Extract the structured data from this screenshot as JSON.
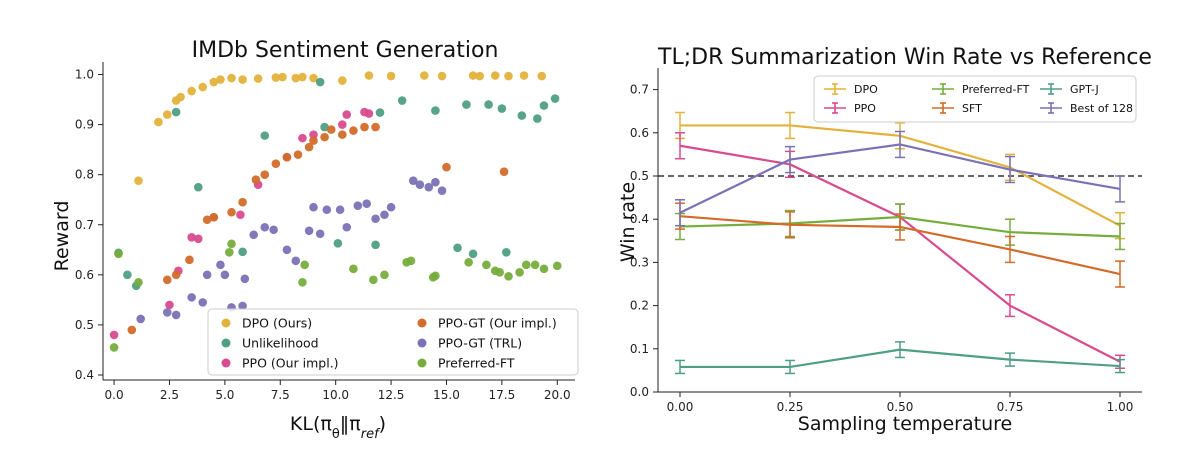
{
  "chart_data": [
    {
      "type": "scatter",
      "title": "IMDb Sentiment Generation",
      "xlabel": "KL(πθ‖πref)",
      "ylabel": "Reward",
      "xlim": [
        -0.5,
        20.8
      ],
      "ylim": [
        0.39,
        1.025
      ],
      "xticks": [
        "0.0",
        "2.5",
        "5.0",
        "7.5",
        "10.0",
        "12.5",
        "15.0",
        "17.5",
        "20.0"
      ],
      "xtick_values": [
        0,
        2.5,
        5,
        7.5,
        10,
        12.5,
        15,
        17.5,
        20
      ],
      "yticks": [
        "0.4",
        "0.5",
        "0.6",
        "0.7",
        "0.8",
        "0.9",
        "1.0"
      ],
      "ytick_values": [
        0.4,
        0.5,
        0.6,
        0.7,
        0.8,
        0.9,
        1.0
      ],
      "grid": false,
      "legend_position": "bottom-right",
      "series": [
        {
          "name": "DPO (Ours)",
          "color": "#e3b23c",
          "points": [
            [
              1.1,
              0.788
            ],
            [
              2.0,
              0.905
            ],
            [
              2.4,
              0.92
            ],
            [
              2.8,
              0.948
            ],
            [
              3.0,
              0.955
            ],
            [
              3.5,
              0.967
            ],
            [
              4.0,
              0.975
            ],
            [
              4.5,
              0.985
            ],
            [
              4.8,
              0.99
            ],
            [
              5.3,
              0.993
            ],
            [
              5.8,
              0.99
            ],
            [
              6.5,
              0.992
            ],
            [
              7.3,
              0.994
            ],
            [
              7.6,
              0.995
            ],
            [
              8.2,
              0.993
            ],
            [
              8.5,
              0.995
            ],
            [
              9.0,
              0.993
            ],
            [
              10.3,
              0.988
            ],
            [
              11.5,
              0.998
            ],
            [
              12.5,
              0.997
            ],
            [
              14.0,
              0.998
            ],
            [
              14.8,
              0.997
            ],
            [
              16.2,
              0.998
            ],
            [
              16.5,
              0.997
            ],
            [
              17.2,
              0.998
            ],
            [
              17.8,
              0.997
            ],
            [
              18.5,
              0.998
            ],
            [
              19.3,
              0.997
            ]
          ]
        },
        {
          "name": "Unlikelihood",
          "color": "#4f9e86",
          "points": [
            [
              0.2,
              0.644
            ],
            [
              0.6,
              0.6
            ],
            [
              1.0,
              0.578
            ],
            [
              2.8,
              0.925
            ],
            [
              3.8,
              0.775
            ],
            [
              5.8,
              0.646
            ],
            [
              6.8,
              0.878
            ],
            [
              9.3,
              0.985
            ],
            [
              9.5,
              0.895
            ],
            [
              10.1,
              0.663
            ],
            [
              11.8,
              0.66
            ],
            [
              12.0,
              0.924
            ],
            [
              13.0,
              0.948
            ],
            [
              14.5,
              0.928
            ],
            [
              15.5,
              0.654
            ],
            [
              15.9,
              0.94
            ],
            [
              16.2,
              0.642
            ],
            [
              16.9,
              0.94
            ],
            [
              17.5,
              0.932
            ],
            [
              17.7,
              0.645
            ],
            [
              18.4,
              0.918
            ],
            [
              19.1,
              0.912
            ],
            [
              19.4,
              0.938
            ],
            [
              19.9,
              0.952
            ]
          ]
        },
        {
          "name": "PPO (Our impl.)",
          "color": "#d94b8f",
          "points": [
            [
              0.0,
              0.48
            ],
            [
              2.5,
              0.54
            ],
            [
              2.9,
              0.608
            ],
            [
              3.5,
              0.675
            ],
            [
              3.8,
              0.672
            ],
            [
              4.5,
              0.715
            ],
            [
              5.7,
              0.72
            ],
            [
              6.5,
              0.78
            ],
            [
              7.8,
              0.835
            ],
            [
              8.5,
              0.873
            ],
            [
              9.0,
              0.88
            ],
            [
              10.3,
              0.9
            ],
            [
              10.5,
              0.92
            ],
            [
              11.3,
              0.925
            ],
            [
              11.5,
              0.922
            ]
          ]
        },
        {
          "name": "PPO-GT (Our impl.)",
          "color": "#d36b2a",
          "points": [
            [
              0.8,
              0.49
            ],
            [
              2.4,
              0.59
            ],
            [
              2.8,
              0.6
            ],
            [
              3.4,
              0.63
            ],
            [
              4.2,
              0.71
            ],
            [
              4.5,
              0.715
            ],
            [
              5.3,
              0.725
            ],
            [
              5.8,
              0.745
            ],
            [
              6.4,
              0.79
            ],
            [
              6.8,
              0.8
            ],
            [
              7.3,
              0.822
            ],
            [
              7.8,
              0.835
            ],
            [
              8.3,
              0.84
            ],
            [
              8.8,
              0.855
            ],
            [
              9.0,
              0.868
            ],
            [
              9.5,
              0.875
            ],
            [
              9.8,
              0.89
            ],
            [
              10.3,
              0.88
            ],
            [
              10.8,
              0.888
            ],
            [
              11.3,
              0.895
            ],
            [
              11.8,
              0.895
            ],
            [
              15.0,
              0.815
            ],
            [
              17.6,
              0.806
            ]
          ]
        },
        {
          "name": "PPO-GT (TRL)",
          "color": "#7b72b6",
          "points": [
            [
              1.2,
              0.512
            ],
            [
              2.4,
              0.525
            ],
            [
              2.8,
              0.52
            ],
            [
              3.5,
              0.555
            ],
            [
              4.0,
              0.545
            ],
            [
              4.2,
              0.6
            ],
            [
              4.8,
              0.62
            ],
            [
              5.0,
              0.6
            ],
            [
              5.3,
              0.535
            ],
            [
              5.8,
              0.538
            ],
            [
              5.9,
              0.592
            ],
            [
              6.3,
              0.68
            ],
            [
              6.8,
              0.695
            ],
            [
              7.2,
              0.69
            ],
            [
              7.8,
              0.65
            ],
            [
              8.2,
              0.628
            ],
            [
              8.8,
              0.688
            ],
            [
              9.0,
              0.735
            ],
            [
              9.3,
              0.682
            ],
            [
              9.6,
              0.73
            ],
            [
              10.2,
              0.73
            ],
            [
              10.5,
              0.695
            ],
            [
              11.0,
              0.738
            ],
            [
              11.4,
              0.742
            ],
            [
              11.8,
              0.712
            ],
            [
              12.2,
              0.72
            ],
            [
              12.5,
              0.735
            ],
            [
              13.5,
              0.788
            ],
            [
              13.8,
              0.78
            ],
            [
              14.2,
              0.775
            ],
            [
              14.5,
              0.785
            ],
            [
              14.8,
              0.768
            ]
          ]
        },
        {
          "name": "Preferred-FT",
          "color": "#77ad3c",
          "points": [
            [
              0.0,
              0.455
            ],
            [
              0.2,
              0.642
            ],
            [
              1.1,
              0.585
            ],
            [
              5.2,
              0.645
            ],
            [
              5.3,
              0.662
            ],
            [
              8.5,
              0.585
            ],
            [
              8.6,
              0.62
            ],
            [
              10.8,
              0.612
            ],
            [
              11.7,
              0.59
            ],
            [
              12.2,
              0.6
            ],
            [
              13.2,
              0.625
            ],
            [
              13.4,
              0.628
            ],
            [
              14.4,
              0.595
            ],
            [
              14.5,
              0.598
            ],
            [
              16.0,
              0.625
            ],
            [
              16.8,
              0.62
            ],
            [
              17.2,
              0.608
            ],
            [
              17.4,
              0.605
            ],
            [
              17.8,
              0.597
            ],
            [
              18.3,
              0.605
            ],
            [
              18.6,
              0.62
            ],
            [
              19.0,
              0.62
            ],
            [
              19.4,
              0.612
            ],
            [
              20.0,
              0.618
            ]
          ]
        }
      ]
    },
    {
      "type": "line",
      "title": "TL;DR Summarization Win Rate vs Reference",
      "xlabel": "Sampling temperature",
      "ylabel": "Win rate",
      "x": [
        0.0,
        0.25,
        0.5,
        0.75,
        1.0
      ],
      "xlim": [
        -0.05,
        1.05
      ],
      "ylim": [
        0.0,
        0.75
      ],
      "xticks": [
        "0.00",
        "0.25",
        "0.50",
        "0.75",
        "1.00"
      ],
      "xtick_values": [
        0.0,
        0.25,
        0.5,
        0.75,
        1.0
      ],
      "yticks": [
        "0.0",
        "0.1",
        "0.2",
        "0.3",
        "0.4",
        "0.5",
        "0.6",
        "0.7"
      ],
      "ytick_values": [
        0.0,
        0.1,
        0.2,
        0.3,
        0.4,
        0.5,
        0.6,
        0.7
      ],
      "reference_line": 0.5,
      "grid": false,
      "legend_position": "top-right",
      "series": [
        {
          "name": "DPO",
          "color": "#e3b23c",
          "values": [
            0.617,
            0.617,
            0.593,
            0.52,
            0.385
          ],
          "errors": [
            0.03,
            0.03,
            0.03,
            0.03,
            0.03
          ]
        },
        {
          "name": "PPO",
          "color": "#d94b8f",
          "values": [
            0.57,
            0.527,
            0.405,
            0.2,
            0.07
          ],
          "errors": [
            0.03,
            0.03,
            0.03,
            0.025,
            0.015
          ]
        },
        {
          "name": "Preferred-FT",
          "color": "#77ad3c",
          "values": [
            0.383,
            0.39,
            0.405,
            0.37,
            0.36
          ],
          "errors": [
            0.03,
            0.03,
            0.03,
            0.03,
            0.03
          ]
        },
        {
          "name": "SFT",
          "color": "#d36b2a",
          "values": [
            0.407,
            0.387,
            0.382,
            0.33,
            0.273
          ],
          "errors": [
            0.03,
            0.03,
            0.03,
            0.03,
            0.03
          ]
        },
        {
          "name": "GPT-J",
          "color": "#4f9e86",
          "values": [
            0.058,
            0.058,
            0.098,
            0.075,
            0.06
          ],
          "errors": [
            0.015,
            0.015,
            0.018,
            0.015,
            0.015
          ]
        },
        {
          "name": "Best of 128",
          "color": "#7b72b6",
          "values": [
            0.415,
            0.538,
            0.573,
            0.515,
            0.47
          ],
          "errors": [
            0.03,
            0.03,
            0.03,
            0.03,
            0.03
          ]
        }
      ]
    }
  ]
}
